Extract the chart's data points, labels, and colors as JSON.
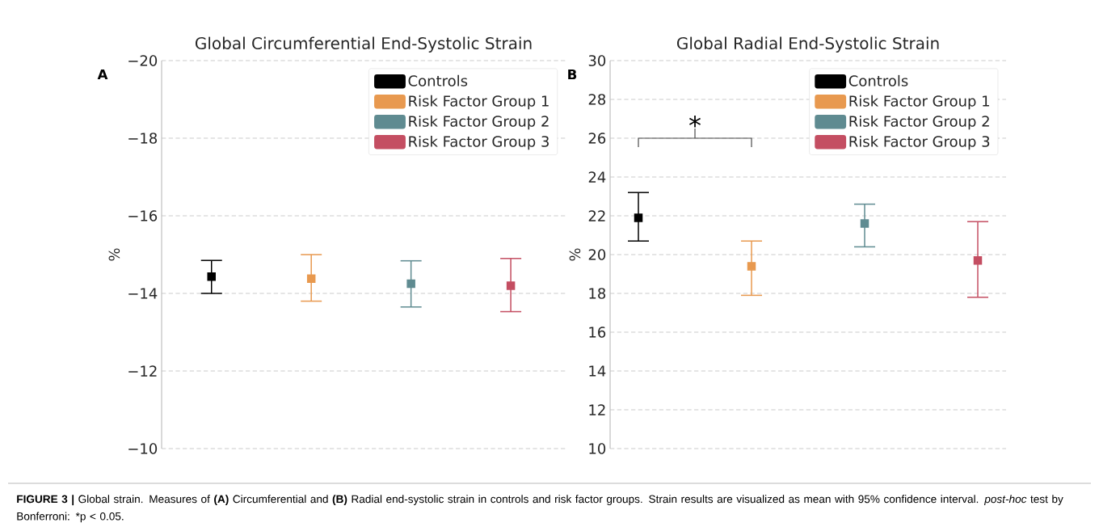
{
  "chart_data": [
    {
      "type": "scatter",
      "title": "Global Circumferential End-Systolic Strain",
      "ylabel": "%",
      "annotations": [
        "A"
      ],
      "categories": [
        null,
        null,
        null,
        null
      ],
      "series": [
        {
          "name": "Controls",
          "color": "#000000",
          "values": [
            -14.43,
            null,
            null,
            null
          ],
          "errors": [
            [
              -14.85,
              -14.0
            ],
            null,
            null,
            null
          ]
        },
        {
          "name": "Risk Factor Group 1",
          "color": "#e8994f",
          "values": [
            null,
            -14.38,
            null,
            null
          ],
          "errors": [
            null,
            [
              -15.0,
              -13.8
            ],
            null,
            null
          ]
        },
        {
          "name": "Risk Factor Group 2",
          "color": "#5f8b91",
          "values": [
            null,
            null,
            -14.25,
            null
          ],
          "errors": [
            null,
            null,
            [
              -14.84,
              -13.65
            ],
            null
          ]
        },
        {
          "name": "Risk Factor Group 3",
          "color": "#c44e62",
          "values": [
            null,
            null,
            null,
            -14.2
          ],
          "errors": [
            null,
            null,
            null,
            [
              -14.9,
              -13.53
            ]
          ]
        }
      ],
      "ylim": [
        -10,
        -20
      ],
      "yticks": [
        {
          "value": -20,
          "label": "−20"
        },
        {
          "value": -18,
          "label": "−18"
        },
        {
          "value": -16,
          "label": "−16"
        },
        {
          "value": -14,
          "label": "−14"
        },
        {
          "value": -12,
          "label": "−12"
        },
        {
          "value": -10,
          "label": "−10"
        }
      ],
      "grid": "y",
      "legend": "top right",
      "marker": "square",
      "tick_labels": "y"
    },
    {
      "type": "scatter",
      "title": "Global Radial End-Systolic Strain",
      "ylabel": "%",
      "annotations": [
        "B",
        "*",
        "**FIGURE 3 |** Global strain. Measures of **(A)** Circumferential and **(B)** Radial end-systolic strain in controls and risk factor groups. Strain results are visualized as mean with 95% confidence interval. *post-hoc* test by Bonferroni: *p < 0.05."
      ],
      "categories": [
        null,
        null,
        null,
        null
      ],
      "series": [
        {
          "name": "Controls",
          "color": "#000000",
          "values": [
            21.9,
            null,
            null,
            null
          ],
          "errors": [
            [
              20.7,
              23.2
            ],
            null,
            null,
            null
          ]
        },
        {
          "name": "Risk Factor Group 1",
          "color": "#e8994f",
          "values": [
            null,
            19.4,
            null,
            null
          ],
          "errors": [
            null,
            [
              17.9,
              20.7
            ],
            null,
            null
          ]
        },
        {
          "name": "Risk Factor Group 2",
          "color": "#5f8b91",
          "values": [
            null,
            null,
            21.6,
            null
          ],
          "errors": [
            null,
            null,
            [
              20.4,
              22.6
            ],
            null
          ]
        },
        {
          "name": "Risk Factor Group 3",
          "color": "#c44e62",
          "values": [
            null,
            null,
            null,
            19.7
          ],
          "errors": [
            null,
            null,
            null,
            [
              17.8,
              21.7
            ]
          ]
        }
      ],
      "ylim": [
        10,
        30
      ],
      "yticks": [
        10,
        12,
        14,
        16,
        18,
        20,
        22,
        24,
        26,
        28,
        30
      ],
      "grid": "y",
      "legend": "top right",
      "marker": "square",
      "tick_labels": "y"
    }
  ]
}
